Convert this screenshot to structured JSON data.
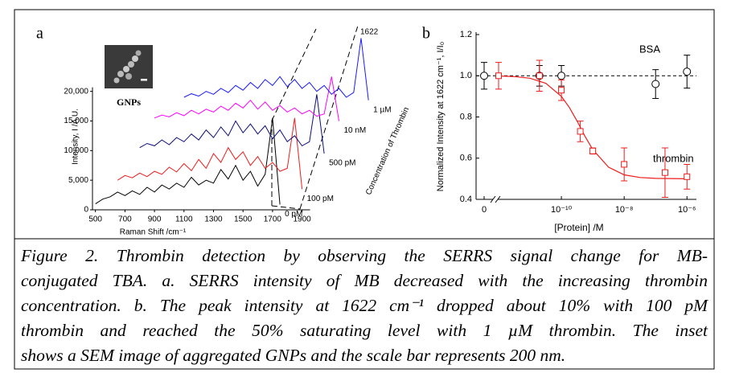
{
  "chart_data": [
    {
      "type": "line",
      "panel_label": "a",
      "xlabel": "Raman Shift /cm⁻¹",
      "ylabel": "Intensity, I /A.U.",
      "xlim": [
        480,
        2300
      ],
      "ylim": [
        0,
        30000
      ],
      "xticks": [
        500,
        700,
        900,
        1100,
        1300,
        1500,
        1700,
        1900
      ],
      "yticks": [
        0,
        {
          "value": 5000,
          "label": "5,000"
        },
        {
          "value": 10000,
          "label": "10,000"
        },
        {
          "value": 15000,
          "label": "15,000"
        },
        {
          "value": 20000,
          "label": "20,000"
        }
      ],
      "peak_label": "1622",
      "axis_annotation": "Concentration of Thrombin",
      "inset_label": "GNPs",
      "series": [
        {
          "name": "0 pM",
          "color": "#000000",
          "x": [
            500,
            550,
            600,
            650,
            700,
            750,
            800,
            850,
            900,
            950,
            1000,
            1050,
            1100,
            1150,
            1200,
            1250,
            1300,
            1350,
            1400,
            1450,
            1500,
            1550,
            1600,
            1650,
            1700,
            1750
          ],
          "values": [
            1000,
            1800,
            2200,
            3000,
            2400,
            3200,
            2600,
            3800,
            3000,
            4200,
            3500,
            4500,
            3800,
            5500,
            4200,
            5000,
            4500,
            6800,
            5200,
            7500,
            5000,
            6500,
            4000,
            6000,
            15500,
            900
          ]
        },
        {
          "name": "100 pM",
          "color": "#ee1c1c",
          "x": [
            650,
            700,
            750,
            800,
            850,
            900,
            950,
            1000,
            1050,
            1100,
            1150,
            1200,
            1250,
            1300,
            1350,
            1400,
            1450,
            1500,
            1550,
            1600,
            1650,
            1700,
            1750,
            1800,
            1850,
            1900
          ],
          "values": [
            5000,
            5800,
            5400,
            6200,
            5600,
            6500,
            6000,
            7200,
            6400,
            7800,
            6600,
            8500,
            7000,
            9500,
            8000,
            10500,
            8500,
            9800,
            7500,
            9000,
            7000,
            8000,
            6500,
            7000,
            15500,
            3500
          ]
        },
        {
          "name": "500 pM",
          "color": "#0c0c7a",
          "x": [
            800,
            850,
            900,
            950,
            1000,
            1050,
            1100,
            1150,
            1200,
            1250,
            1300,
            1350,
            1400,
            1450,
            1500,
            1550,
            1600,
            1650,
            1700,
            1750,
            1800,
            1850,
            1900,
            1950,
            2000,
            2050
          ],
          "values": [
            10500,
            11200,
            10800,
            11800,
            11000,
            12200,
            11500,
            12800,
            11800,
            13500,
            12200,
            14000,
            12500,
            15000,
            13000,
            14500,
            12800,
            14200,
            12000,
            13500,
            11500,
            12500,
            10800,
            11500,
            19500,
            9500
          ]
        },
        {
          "name": "10 nM",
          "color": "#ff00ff",
          "x": [
            900,
            950,
            1000,
            1050,
            1100,
            1150,
            1200,
            1250,
            1300,
            1350,
            1400,
            1450,
            1500,
            1550,
            1600,
            1650,
            1700,
            1750,
            1800,
            1850,
            1900,
            1950,
            2000,
            2050,
            2100,
            2150
          ],
          "values": [
            15500,
            16000,
            15700,
            16400,
            15900,
            16800,
            16200,
            17000,
            16500,
            17500,
            16800,
            18000,
            17200,
            18500,
            17000,
            18200,
            16800,
            17600,
            16500,
            17200,
            16200,
            16800,
            15800,
            16200,
            22500,
            15000
          ]
        },
        {
          "name": "1 µM",
          "color": "#1a1aff",
          "x": [
            1100,
            1150,
            1200,
            1250,
            1300,
            1350,
            1400,
            1450,
            1500,
            1550,
            1600,
            1650,
            1700,
            1750,
            1800,
            1850,
            1900,
            1950,
            2000,
            2050,
            2100,
            2150,
            2200,
            2250,
            2300,
            2350
          ],
          "values": [
            19000,
            19600,
            19200,
            20000,
            19500,
            20500,
            19800,
            21000,
            20200,
            21500,
            20500,
            22000,
            21000,
            22500,
            20800,
            22000,
            20500,
            21500,
            20000,
            21000,
            19500,
            20500,
            19000,
            19800,
            29000,
            18500
          ]
        }
      ]
    },
    {
      "type": "scatter",
      "panel_label": "b",
      "xlabel": "[Protein] /M",
      "ylabel": "Normalized Intensity at 1622 cm⁻¹, I/I₀",
      "xscale": "log",
      "xlim": [
        1e-12,
        2e-06
      ],
      "ylim": [
        0.4,
        1.2
      ],
      "xticks": [
        0,
        {
          "value": 1e-10,
          "label": "10⁻¹⁰"
        },
        {
          "value": 1e-08,
          "label": "10⁻⁸"
        },
        {
          "value": 1e-06,
          "label": "10⁻⁶"
        }
      ],
      "yticks": [
        0.4,
        0.6,
        0.8,
        {
          "value": 1,
          "label": "1.0"
        },
        1.2
      ],
      "hline": 1,
      "series": [
        {
          "name": "BSA",
          "color": "#000000",
          "marker": "circle",
          "x": [
            0,
            2e-11,
            1e-10,
            1e-07,
            1e-06
          ],
          "values": [
            1.0,
            1.0,
            1.0,
            0.96,
            1.02
          ],
          "errors": [
            0.065,
            0.05,
            0.05,
            0.07,
            0.08
          ]
        },
        {
          "name": "thrombin",
          "color": "#ee1c1c",
          "marker": "square",
          "x": [
            1e-12,
            2e-11,
            1e-10,
            4e-10,
            1e-09,
            1e-08,
            2e-07,
            1e-06
          ],
          "values": [
            1.0,
            1.0,
            0.93,
            0.73,
            0.635,
            0.57,
            0.53,
            0.51
          ],
          "errors": [
            0.065,
            0.075,
            0.05,
            0.05,
            0.015,
            0.08,
            0.12,
            0.06
          ]
        }
      ],
      "fit": {
        "color": "#ee1c1c",
        "x": [
          1e-12,
          3.2e-12,
          1e-11,
          3.2e-11,
          1e-10,
          1.8e-10,
          3.2e-10,
          5.6e-10,
          1e-09,
          3.2e-09,
          1e-08,
          3.2e-08,
          1e-07,
          3.2e-07,
          1e-06
        ],
        "values": [
          0.999,
          0.996,
          0.988,
          0.963,
          0.9,
          0.846,
          0.779,
          0.707,
          0.642,
          0.556,
          0.519,
          0.506,
          0.502,
          0.501,
          0.5
        ]
      }
    }
  ],
  "caption_lines": [
    "Figure 2. Thrombin detection by observing the SERRS signal change for MB-",
    "conjugated TBA. a. SERRS intensity of MB decreased with the increasing thrombin",
    "concentration. b. The peak intensity at 1622 cm⁻¹ dropped about 10% with 100 pM",
    "thrombin and reached the 50% saturating level with 1 µM thrombin. The inset",
    "shows a SEM image of aggregated GNPs and the scale bar represents 200 nm."
  ]
}
